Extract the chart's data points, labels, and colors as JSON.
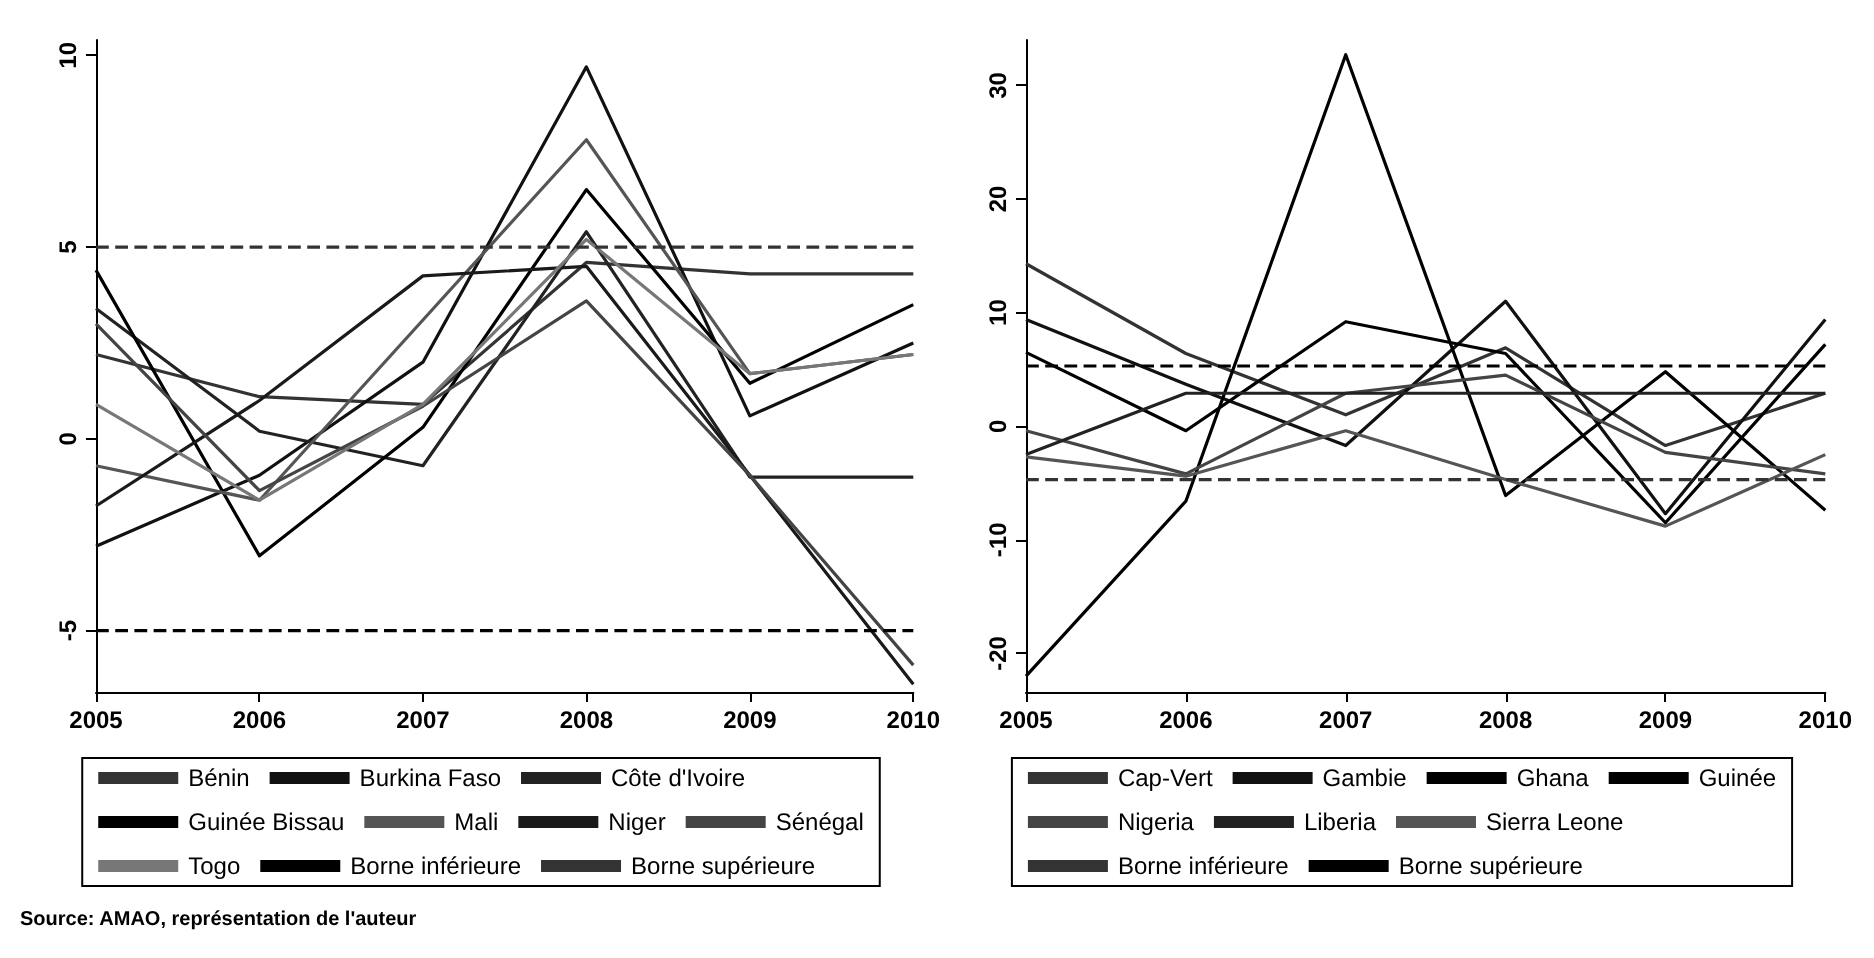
{
  "chart_data": [
    {
      "type": "line",
      "categories": [
        "2005",
        "2006",
        "2007",
        "2008",
        "2009",
        "2010"
      ],
      "ylim": [
        -6.6,
        10.4
      ],
      "yticks": [
        -5,
        0,
        5,
        10
      ],
      "grid": false,
      "legend": "bottom",
      "marker": "none",
      "annotations": [
        "Source: AMAO, représentation de l'auteur"
      ],
      "series": [
        {
          "name": "Bénin",
          "color": "#333333",
          "values": [
            2.2,
            1.1,
            0.9,
            4.6,
            4.3,
            4.3
          ]
        },
        {
          "name": "Burkina Faso",
          "color": "#111111",
          "values": [
            -2.8,
            -0.95,
            2.0,
            9.7,
            0.6,
            2.5
          ]
        },
        {
          "name": "Côte d'Ivoire",
          "color": "#222222",
          "values": [
            3.4,
            0.2,
            -0.7,
            5.4,
            -1.0,
            -1.0
          ]
        },
        {
          "name": "Guinée Bissau",
          "color": "#000000",
          "values": [
            4.4,
            -3.05,
            0.3,
            6.5,
            1.45,
            3.5
          ]
        },
        {
          "name": "Mali",
          "color": "#555555",
          "values": [
            -0.7,
            -1.6,
            3.1,
            7.8,
            1.7,
            2.2
          ]
        },
        {
          "name": "Niger",
          "color": "#1a1a1a",
          "values": [
            -1.75,
            1.0,
            4.25,
            4.5,
            -0.95,
            -6.4
          ]
        },
        {
          "name": "Sénégal",
          "color": "#444444",
          "values": [
            3.0,
            -1.35,
            0.85,
            3.6,
            -0.95,
            -5.9
          ]
        },
        {
          "name": "Togo",
          "color": "#777777",
          "values": [
            0.9,
            -1.6,
            0.9,
            5.2,
            1.7,
            2.2
          ]
        },
        {
          "name": "Borne inférieure",
          "color": "#000000",
          "line_style": "dashed",
          "values": [
            -5,
            -5,
            -5,
            -5,
            -5,
            -5
          ]
        },
        {
          "name": "Borne supérieure",
          "color": "#333333",
          "line_style": "dashed",
          "values": [
            5,
            5,
            5,
            5,
            5,
            5
          ]
        }
      ]
    },
    {
      "type": "line",
      "categories": [
        "2005",
        "2006",
        "2007",
        "2008",
        "2009",
        "2010"
      ],
      "ylim": [
        -23.4,
        34
      ],
      "yticks": [
        -20,
        -10,
        0,
        10,
        20,
        30
      ],
      "grid": false,
      "legend": "bottom",
      "marker": "none",
      "series": [
        {
          "name": "Cap-Vert",
          "color": "#333333",
          "values": [
            14.3,
            6.4,
            1.0,
            6.9,
            -1.7,
            2.9
          ]
        },
        {
          "name": "Gambie",
          "color": "#111111",
          "values": [
            9.4,
            3.7,
            -1.7,
            11.0,
            -7.7,
            9.4
          ]
        },
        {
          "name": "Ghana",
          "color": "#000000",
          "values": [
            6.5,
            -0.4,
            9.2,
            6.4,
            -8.5,
            7.2
          ]
        },
        {
          "name": "Guinée",
          "color": "#000000",
          "values": [
            -22,
            -6.6,
            32.7,
            -6.1,
            4.8,
            -7.4
          ]
        },
        {
          "name": "Nigeria",
          "color": "#444444",
          "values": [
            -0.4,
            -4.2,
            2.9,
            4.5,
            -2.3,
            -4.2
          ]
        },
        {
          "name": "Liberia",
          "color": "#222222",
          "values": [
            -2.5,
            2.9,
            2.9,
            2.9,
            2.9,
            2.9
          ]
        },
        {
          "name": "Sierra Leone",
          "color": "#555555",
          "values": [
            -2.7,
            -4.4,
            -0.4,
            -4.7,
            -8.8,
            -2.5
          ]
        },
        {
          "name": "Borne inférieure",
          "color": "#333333",
          "line_style": "dashed",
          "values": [
            -4.7,
            -4.7,
            -4.7,
            -4.7,
            -4.7,
            -4.7
          ]
        },
        {
          "name": "Borne supérieure",
          "color": "#000000",
          "line_style": "dashed",
          "values": [
            5.3,
            5.3,
            5.3,
            5.3,
            5.3,
            5.3
          ]
        }
      ]
    }
  ]
}
